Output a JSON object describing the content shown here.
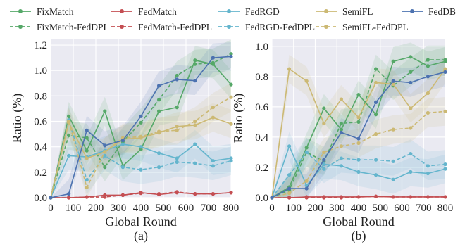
{
  "chart_data": [
    {
      "type": "line",
      "panel_label": "(a)",
      "xlabel": "Global Round",
      "ylabel": "Ratio (%)",
      "xlim": [
        0,
        800
      ],
      "ylim": [
        0,
        1.25
      ],
      "xticks": [
        0,
        100,
        200,
        300,
        400,
        500,
        600,
        700,
        800
      ],
      "yticks": [
        0.0,
        0.2,
        0.4,
        0.6,
        0.8,
        1.0,
        1.2
      ],
      "ytick_labels": [
        "0.0",
        "0.2",
        "0.4",
        "0.6",
        "0.8",
        "1.0",
        "1.2"
      ],
      "grid": true,
      "x": [
        0,
        80,
        160,
        240,
        320,
        400,
        480,
        560,
        640,
        720,
        800
      ],
      "series": [
        {
          "name": "FixMatch",
          "color": "#55a868",
          "dash": "solid",
          "values": [
            0,
            0.64,
            0.37,
            0.68,
            0.25,
            0.38,
            0.68,
            0.71,
            1.08,
            1.05,
            0.89
          ]
        },
        {
          "name": "FixMatch-FedDPL",
          "color": "#55a868",
          "dash": "dashed",
          "values": [
            0,
            0.49,
            0.47,
            0.24,
            0.44,
            0.59,
            0.77,
            0.96,
            1.05,
            1.06,
            1.13
          ]
        },
        {
          "name": "FedMatch",
          "color": "#c44e52",
          "dash": "solid",
          "values": [
            0,
            0.0,
            0.005,
            0.02,
            0.02,
            0.04,
            0.025,
            0.04,
            0.03,
            0.03,
            0.04
          ]
        },
        {
          "name": "FedMatch-FedDPL",
          "color": "#c44e52",
          "dash": "dashed",
          "values": [
            0,
            0.0,
            0.005,
            0.005,
            0.02,
            0.035,
            0.03,
            0.045,
            0.03,
            0.03,
            0.04
          ]
        },
        {
          "name": "FedRGD",
          "color": "#64b5cd",
          "dash": "solid",
          "values": [
            0,
            0.33,
            0.32,
            0.37,
            0.42,
            0.4,
            0.35,
            0.31,
            0.42,
            0.29,
            0.31
          ]
        },
        {
          "name": "FedRGD-FedDPL",
          "color": "#64b5cd",
          "dash": "dashed",
          "values": [
            0,
            0.61,
            0.14,
            0.33,
            0.24,
            0.22,
            0.24,
            0.28,
            0.27,
            0.25,
            0.29
          ]
        },
        {
          "name": "SemiFL",
          "color": "#ccb974",
          "dash": "solid",
          "values": [
            0,
            0.59,
            0.31,
            0.36,
            0.46,
            0.47,
            0.51,
            0.56,
            0.57,
            0.63,
            0.58
          ]
        },
        {
          "name": "SemiFL-FedDPL",
          "color": "#ccb974",
          "dash": "dashed",
          "values": [
            0,
            0.6,
            0.08,
            0.36,
            0.47,
            0.48,
            0.52,
            0.53,
            0.6,
            0.71,
            0.79
          ]
        },
        {
          "name": "FedDB",
          "color": "#4c72b0",
          "dash": "solid",
          "values": [
            0,
            0.03,
            0.53,
            0.41,
            0.45,
            0.64,
            0.88,
            0.93,
            0.92,
            1.1,
            1.11
          ]
        }
      ]
    },
    {
      "type": "line",
      "panel_label": "(b)",
      "xlabel": "Global Round",
      "ylabel": "Ratio (%)",
      "xlim": [
        0,
        800
      ],
      "ylim": [
        0,
        1.05
      ],
      "xticks": [
        0,
        100,
        200,
        300,
        400,
        500,
        600,
        700,
        800
      ],
      "yticks": [
        0.0,
        0.2,
        0.4,
        0.6,
        0.8,
        1.0
      ],
      "ytick_labels": [
        "0.0",
        "0.2",
        "0.4",
        "0.6",
        "0.8",
        "1.0"
      ],
      "grid": true,
      "x": [
        0,
        80,
        160,
        240,
        320,
        400,
        480,
        560,
        640,
        720,
        800
      ],
      "series": [
        {
          "name": "FixMatch",
          "color": "#55a868",
          "dash": "solid",
          "values": [
            0,
            0.07,
            0.33,
            0.59,
            0.45,
            0.68,
            0.55,
            0.9,
            0.93,
            0.87,
            0.9
          ]
        },
        {
          "name": "FixMatch-FedDPL",
          "color": "#55a868",
          "dash": "dashed",
          "values": [
            0,
            0.05,
            0.3,
            0.24,
            0.49,
            0.5,
            0.85,
            0.74,
            0.83,
            0.91,
            0.91
          ]
        },
        {
          "name": "FedMatch",
          "color": "#c44e52",
          "dash": "solid",
          "values": [
            0,
            0.0,
            0.005,
            0.005,
            0.005,
            0.005,
            0.008,
            0.005,
            0.005,
            0.005,
            0.005
          ]
        },
        {
          "name": "FedMatch-FedDPL",
          "color": "#c44e52",
          "dash": "dashed",
          "values": [
            0,
            0.0,
            0.0,
            0.0,
            0.0,
            0.005,
            0.008,
            0.005,
            0.005,
            0.005,
            0.005
          ]
        },
        {
          "name": "FedRGD",
          "color": "#64b5cd",
          "dash": "solid",
          "values": [
            0,
            0.34,
            0.08,
            0.22,
            0.21,
            0.17,
            0.15,
            0.12,
            0.17,
            0.16,
            0.19
          ]
        },
        {
          "name": "FedRGD-FedDPL",
          "color": "#64b5cd",
          "dash": "dashed",
          "values": [
            0,
            0.15,
            0.3,
            0.19,
            0.26,
            0.25,
            0.25,
            0.24,
            0.29,
            0.21,
            0.22
          ]
        },
        {
          "name": "SemiFL",
          "color": "#ccb974",
          "dash": "solid",
          "values": [
            0,
            0.85,
            0.77,
            0.49,
            0.65,
            0.53,
            0.76,
            0.75,
            0.59,
            0.69,
            0.85
          ]
        },
        {
          "name": "SemiFL-FedDPL",
          "color": "#ccb974",
          "dash": "dashed",
          "values": [
            0,
            0.03,
            0.11,
            0.3,
            0.34,
            0.36,
            0.42,
            0.45,
            0.46,
            0.56,
            0.57
          ]
        },
        {
          "name": "FedDB",
          "color": "#4c72b0",
          "dash": "solid",
          "values": [
            0,
            0.06,
            0.06,
            0.25,
            0.43,
            0.39,
            0.63,
            0.77,
            0.76,
            0.8,
            0.83
          ]
        }
      ]
    }
  ],
  "legend": {
    "placement": "top",
    "entries": [
      {
        "label": "FixMatch",
        "color": "#55a868",
        "dash": "solid"
      },
      {
        "label": "FedMatch",
        "color": "#c44e52",
        "dash": "solid"
      },
      {
        "label": "FedRGD",
        "color": "#64b5cd",
        "dash": "solid"
      },
      {
        "label": "SemiFL",
        "color": "#ccb974",
        "dash": "solid"
      },
      {
        "label": "FedDB",
        "color": "#4c72b0",
        "dash": "solid"
      },
      {
        "label": "FixMatch-FedDPL",
        "color": "#55a868",
        "dash": "dashed"
      },
      {
        "label": "FedMatch-FedDPL",
        "color": "#c44e52",
        "dash": "dashed"
      },
      {
        "label": "FedRGD-FedDPL",
        "color": "#64b5cd",
        "dash": "dashed"
      },
      {
        "label": "SemiFL-FedDPL",
        "color": "#ccb974",
        "dash": "dashed"
      }
    ]
  },
  "style": {
    "axes_background": "#eaeaf2",
    "grid_color": "#ffffff"
  }
}
